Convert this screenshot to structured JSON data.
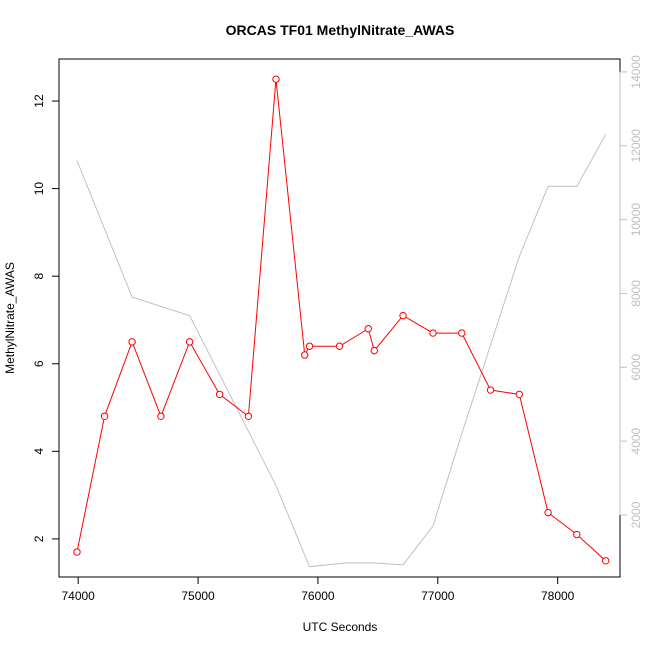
{
  "chart_data": {
    "type": "line",
    "title": "ORCAS TF01 MethylNitrate_AWAS",
    "xlabel": "UTC Seconds",
    "ylabel": "MethylNitrate_AWAS",
    "y2label": "",
    "xlim": [
      73840,
      78520
    ],
    "ylim": [
      1.13,
      12.96
    ],
    "y2lim": [
      320,
      14350
    ],
    "x_ticks": [
      "74000",
      "75000",
      "76000",
      "77000",
      "78000"
    ],
    "y_ticks": [
      "2",
      "4",
      "6",
      "8",
      "10",
      "12"
    ],
    "y2_ticks": [
      "2000",
      "4000",
      "6000",
      "8000",
      "10000",
      "12000",
      "14000"
    ],
    "grid": false,
    "series": [
      {
        "axis": "left",
        "color": "#ff0000",
        "marker": "open-circle",
        "x": [
          73990,
          74220,
          74450,
          74690,
          74930,
          75180,
          75420,
          75650,
          75890,
          75930,
          76180,
          76420,
          76470,
          76710,
          76960,
          77200,
          77440,
          77680,
          77920,
          78160,
          78400
        ],
        "y": [
          1.7,
          4.8,
          6.5,
          4.8,
          6.5,
          5.3,
          4.8,
          12.5,
          6.2,
          6.4,
          6.4,
          6.8,
          6.3,
          7.1,
          6.7,
          6.7,
          5.4,
          5.3,
          2.6,
          2.1,
          1.5
        ]
      },
      {
        "axis": "right",
        "color": "#c0c0c0",
        "marker": "none",
        "x": [
          73990,
          74450,
          74930,
          75650,
          75930,
          76230,
          76470,
          76710,
          76960,
          77200,
          77440,
          77680,
          77920,
          78160,
          78400
        ],
        "y": [
          11600,
          7900,
          7400,
          2800,
          600,
          700,
          700,
          650,
          1700,
          4200,
          6600,
          9000,
          10900,
          10900,
          12300
        ]
      }
    ]
  }
}
